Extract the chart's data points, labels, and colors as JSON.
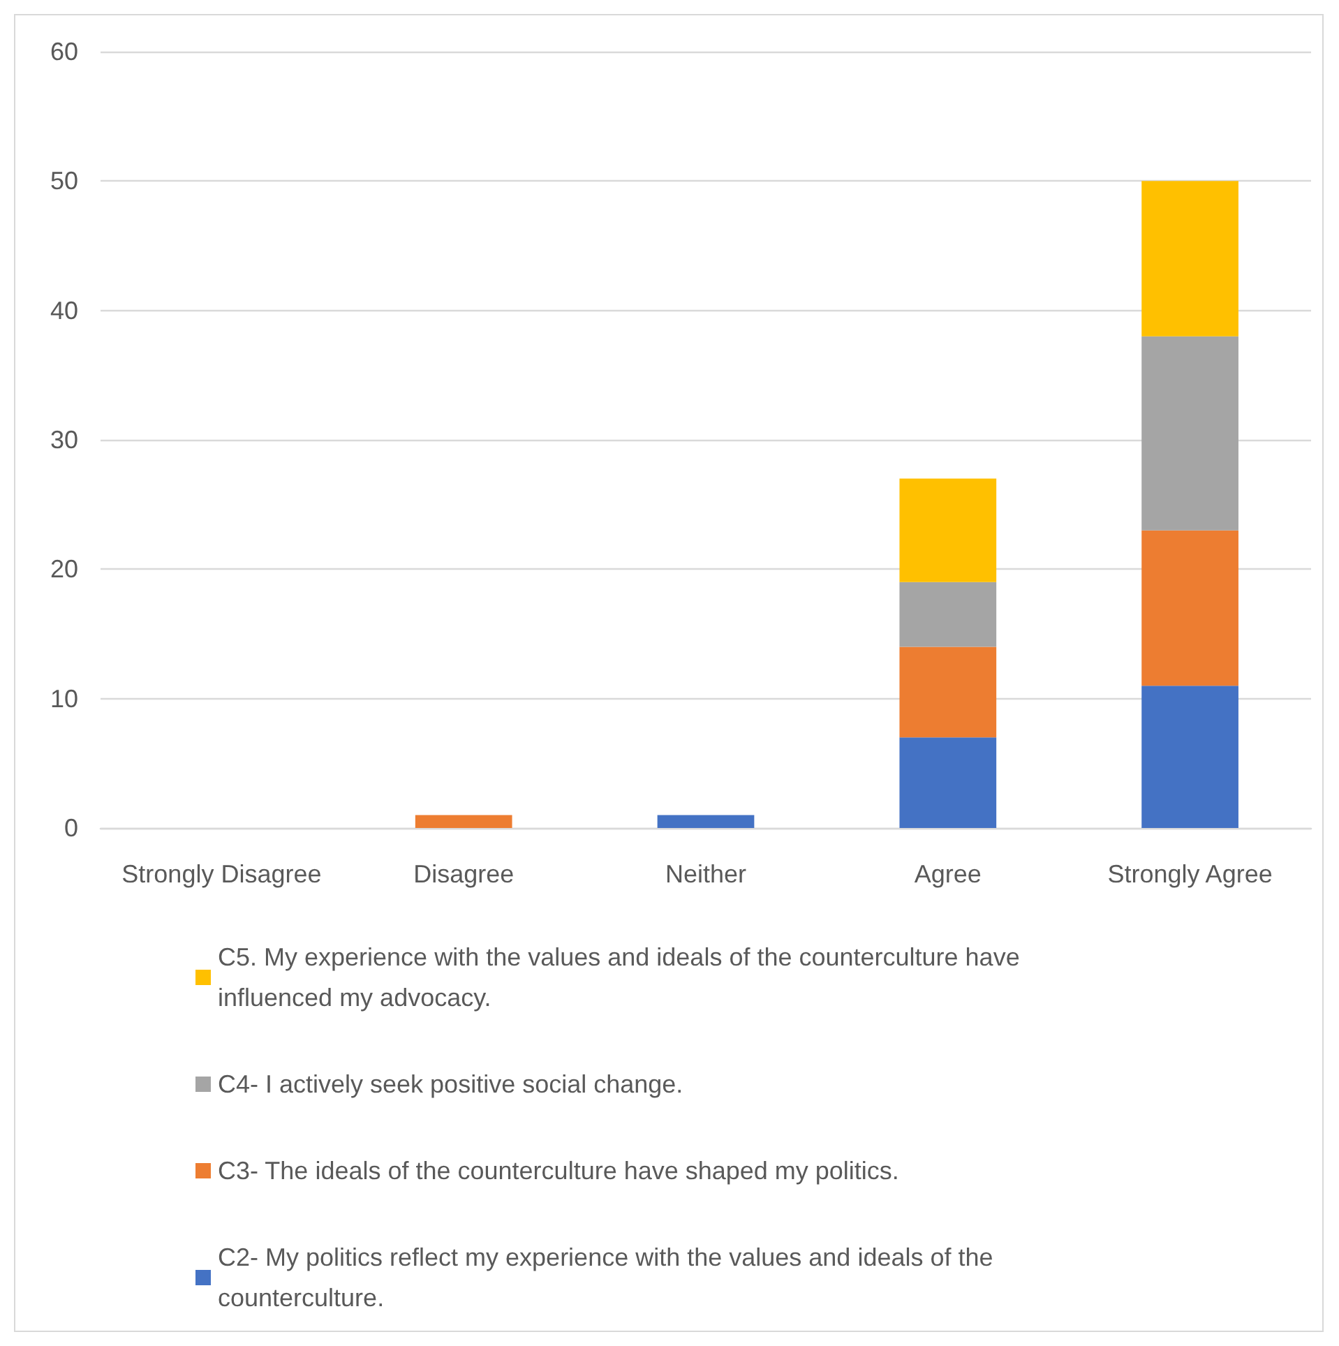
{
  "chart_data": {
    "type": "bar",
    "stacked": true,
    "categories": [
      "Strongly Disagree",
      "Disagree",
      "Neither",
      "Agree",
      "Strongly Agree"
    ],
    "series": [
      {
        "name": "C2- My politics reflect my experience with the values and ideals of the counterculture.",
        "color": "#4472c4",
        "values": [
          0,
          0,
          1,
          7,
          11
        ]
      },
      {
        "name": "C3- The ideals of the counterculture have shaped my politics.",
        "color": "#ed7d31",
        "values": [
          0,
          1,
          0,
          7,
          12
        ]
      },
      {
        "name": "C4- I actively seek positive social change.",
        "color": "#a5a5a5",
        "values": [
          0,
          0,
          0,
          5,
          15
        ]
      },
      {
        "name": "C5. My experience with the values and ideals of the counterculture have influenced my advocacy.",
        "color": "#ffc000",
        "values": [
          0,
          0,
          0,
          8,
          12
        ]
      }
    ],
    "ylim": [
      0,
      60
    ],
    "yticks": [
      0,
      10,
      20,
      30,
      40,
      50,
      60
    ],
    "grid": "y",
    "legend": "bottom"
  }
}
